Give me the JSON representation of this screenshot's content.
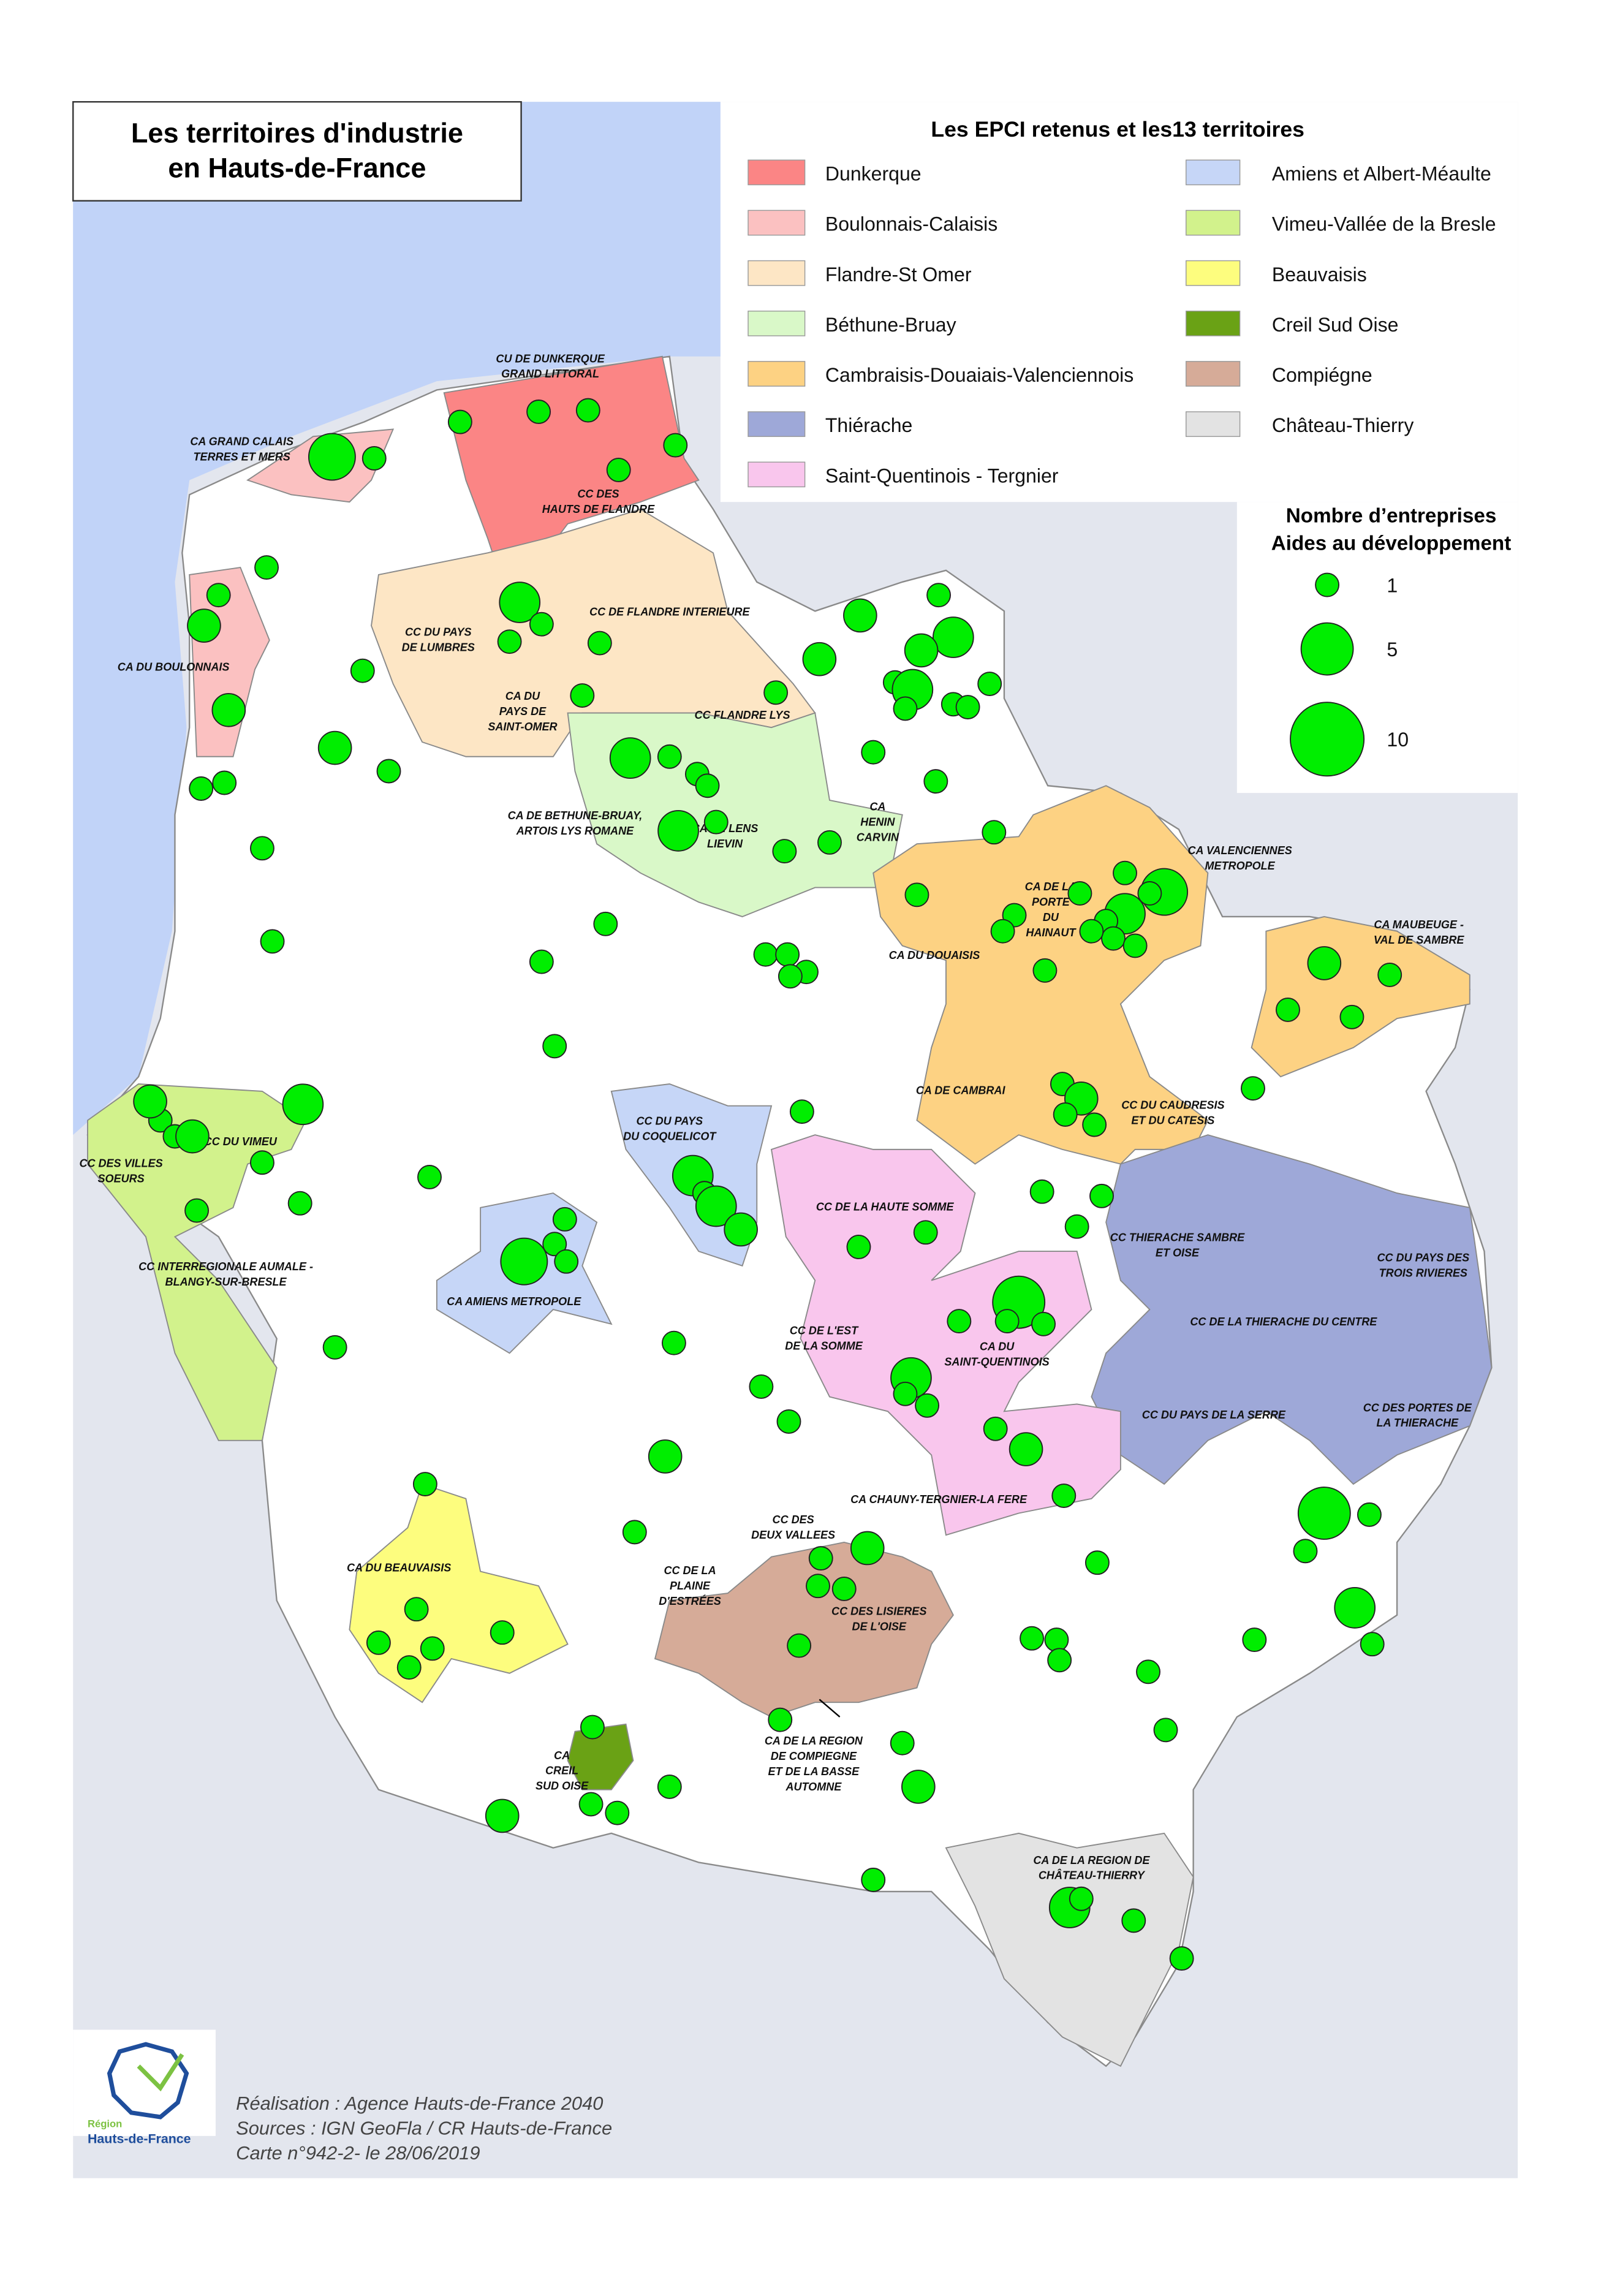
{
  "title": [
    "Les territoires d'industrie",
    "en Hauts-de-France"
  ],
  "legend": {
    "title": "Les EPCI retenus et les13 territoires",
    "items": [
      {
        "name": "Dunkerque",
        "color": "#fb8585"
      },
      {
        "name": "Boulonnais-Calaisis",
        "color": "#fbc1c1"
      },
      {
        "name": "Flandre-St Omer",
        "color": "#fde6c5"
      },
      {
        "name": "Béthune-Bruay",
        "color": "#d9f8c8"
      },
      {
        "name": "Cambraisis-Douaiais-Valenciennois",
        "color": "#fdd283"
      },
      {
        "name": "Thiérache",
        "color": "#9ea8d8"
      },
      {
        "name": "Saint-Quentinois - Tergnier",
        "color": "#f9c6ed"
      },
      {
        "name": "Amiens et Albert-Méaulte",
        "color": "#c6d6f7"
      },
      {
        "name": "Vimeu-Vallée de la Bresle",
        "color": "#d2f28c"
      },
      {
        "name": "Beauvaisis",
        "color": "#fdfd7e"
      },
      {
        "name": "Creil Sud Oise",
        "color": "#6aa215"
      },
      {
        "name": "Compiégne",
        "color": "#d6ab98"
      },
      {
        "name": "Château-Thierry",
        "color": "#e3e3e3"
      }
    ]
  },
  "size_legend": {
    "title": [
      "Nombre d’entreprises",
      "Aides au développement"
    ],
    "values": [
      1,
      5,
      10
    ],
    "color": "#00ee00"
  },
  "epci_labels": [
    [
      "CU DE DUNKERQUE",
      "GRAND LITTORAL"
    ],
    [
      "CA GRAND CALAIS",
      "TERRES ET MERS"
    ],
    [
      "CC DES",
      "HAUTS DE FLANDRE"
    ],
    [
      "CA DU BOULONNAIS"
    ],
    [
      "CC DU PAYS",
      "DE LUMBRES"
    ],
    [
      "CC DE FLANDRE INTERIEURE"
    ],
    [
      "CA DU",
      "PAYS DE",
      "SAINT-OMER"
    ],
    [
      "CC FLANDRE LYS"
    ],
    [
      "CA DE BETHUNE-BRUAY,",
      "ARTOIS LYS ROMANE"
    ],
    [
      "CA",
      "HENIN",
      "CARVIN"
    ],
    [
      "CA DE LENS",
      "LIEVIN"
    ],
    [
      "CA VALENCIENNES",
      "METROPOLE"
    ],
    [
      "CA DE LA",
      "PORTE",
      "DU",
      "HAINAUT"
    ],
    [
      "CA DU DOUAISIS"
    ],
    [
      "CA MAUBEUGE -",
      "VAL DE SAMBRE"
    ],
    [
      "CA DE CAMBRAI"
    ],
    [
      "CC DU CAUDRESIS",
      "ET DU CATESIS"
    ],
    [
      "CC DU VIMEU"
    ],
    [
      "CC DES VILLES",
      "SOEURS"
    ],
    [
      "CC DU PAYS",
      "DU COQUELICOT"
    ],
    [
      "CC DE LA HAUTE SOMME"
    ],
    [
      "CC INTERREGIONALE AUMALE -",
      "BLANGY-SUR-BRESLE"
    ],
    [
      "CA AMIENS METROPOLE"
    ],
    [
      "CC THIERACHE SAMBRE",
      "ET OISE"
    ],
    [
      "CC DU PAYS DES",
      "TROIS RIVIERES"
    ],
    [
      "CC DE L'EST",
      "DE LA SOMME"
    ],
    [
      "CA DU",
      "SAINT-QUENTINOIS"
    ],
    [
      "CC DE LA THIERACHE DU CENTRE"
    ],
    [
      "CC DU PAYS DE LA SERRE"
    ],
    [
      "CC DES PORTES DE",
      "LA THIERACHE"
    ],
    [
      "CA CHAUNY-TERGNIER-LA FERE"
    ],
    [
      "CC DES",
      "DEUX VALLEES"
    ],
    [
      "CA DU BEAUVAISIS"
    ],
    [
      "CC DE LA",
      "PLAINE",
      "D'ESTRÉES"
    ],
    [
      "CC DES LISIERES",
      "DE L'OISE"
    ],
    [
      "CA DE LA REGION",
      "DE COMPIEGNE",
      "ET DE LA BASSE",
      "AUTOMNE"
    ],
    [
      "CA",
      "CREIL",
      "SUD OISE"
    ],
    [
      "CA DE LA REGION DE",
      "CHÂTEAU-THIERRY"
    ]
  ],
  "enterprise_points": [
    1,
    1,
    1,
    1,
    1,
    4,
    1,
    1,
    1,
    2,
    2,
    1,
    3,
    1,
    1,
    1,
    1,
    2,
    1,
    1,
    1,
    1,
    1,
    3,
    1,
    1,
    1,
    3,
    1,
    1,
    1,
    1,
    1,
    1,
    2,
    1,
    3,
    2,
    1,
    3,
    1,
    1,
    1,
    2,
    1,
    1,
    1,
    1,
    1,
    1,
    1,
    1,
    1,
    1,
    1,
    1,
    4,
    1,
    3,
    1,
    1,
    1,
    1,
    1,
    1,
    1,
    2,
    1,
    1,
    1,
    1,
    1,
    2,
    1,
    1,
    1,
    1,
    2,
    1,
    2,
    3,
    1,
    1,
    1,
    1,
    3,
    1,
    3,
    2,
    1,
    1,
    4,
    1,
    1,
    1,
    1,
    1,
    1,
    5,
    1,
    1,
    1,
    3,
    1,
    1,
    1,
    1,
    1,
    1,
    2,
    1,
    2,
    1,
    1,
    2,
    1,
    1,
    1,
    1,
    1,
    1,
    1,
    1,
    3,
    1,
    5,
    1,
    1,
    1,
    1,
    1,
    1,
    1,
    1,
    1,
    1,
    1,
    1,
    1,
    1,
    1,
    1,
    1,
    2,
    2,
    1,
    3,
    1,
    1,
    1
  ],
  "credits": [
    "Réalisation :  Agence Hauts-de-France 2040",
    "Sources : IGN GeoFla / CR Hauts-de-France",
    "Carte n°942-2- le 28/06/2019"
  ],
  "logo": [
    "Région",
    "Hauts-de-France"
  ]
}
